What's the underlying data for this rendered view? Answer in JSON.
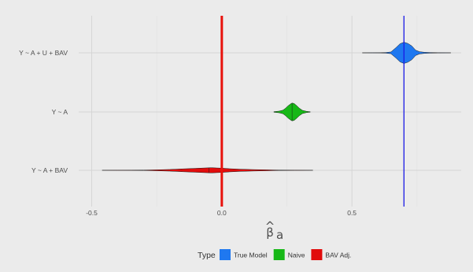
{
  "chart_data": {
    "type": "violin",
    "orientation": "horizontal",
    "xlabel_main": "β",
    "xlabel_hat": "^",
    "xlabel_sub": "a",
    "x_ticks": [
      -0.5,
      0.0,
      0.5
    ],
    "x_tick_labels": [
      "-0.5",
      "0.0",
      "0.5"
    ],
    "xlim": [
      -0.55,
      0.92
    ],
    "categories": [
      "Y ~ A + U + BAV",
      "Y ~ A",
      "Y ~ A + BAV"
    ],
    "grid": true,
    "reference_lines": [
      {
        "x": 0.0,
        "color": "#e8120c"
      },
      {
        "x": 0.7,
        "color": "#1a1ae6"
      }
    ],
    "series": [
      {
        "name": "True Model",
        "category": "Y ~ A + U + BAV",
        "color": "#1f78f0",
        "min": 0.54,
        "max": 0.88,
        "median": 0.7,
        "max_halfwidth_frac": 0.18,
        "profile": [
          [
            0.54,
            0.003
          ],
          [
            0.58,
            0.006
          ],
          [
            0.61,
            0.012
          ],
          [
            0.63,
            0.03
          ],
          [
            0.65,
            0.08
          ],
          [
            0.67,
            0.5
          ],
          [
            0.685,
            0.85
          ],
          [
            0.7,
            1.0
          ],
          [
            0.715,
            0.88
          ],
          [
            0.73,
            0.65
          ],
          [
            0.745,
            0.25
          ],
          [
            0.76,
            0.1
          ],
          [
            0.78,
            0.05
          ],
          [
            0.8,
            0.03
          ],
          [
            0.83,
            0.012
          ],
          [
            0.86,
            0.006
          ],
          [
            0.88,
            0.003
          ]
        ]
      },
      {
        "name": "Naive",
        "category": "Y ~ A",
        "color": "#17b817",
        "min": 0.2,
        "max": 0.34,
        "median": 0.27,
        "max_halfwidth_frac": 0.15,
        "profile": [
          [
            0.2,
            0.03
          ],
          [
            0.22,
            0.09
          ],
          [
            0.235,
            0.2
          ],
          [
            0.245,
            0.42
          ],
          [
            0.255,
            0.7
          ],
          [
            0.265,
            0.92
          ],
          [
            0.27,
            1.0
          ],
          [
            0.278,
            0.95
          ],
          [
            0.288,
            0.7
          ],
          [
            0.298,
            0.42
          ],
          [
            0.31,
            0.18
          ],
          [
            0.325,
            0.07
          ],
          [
            0.34,
            0.02
          ]
        ]
      },
      {
        "name": "BAV Adj.",
        "category": "Y ~ A + BAV",
        "color": "#e10c0c",
        "min": -0.46,
        "max": 0.35,
        "median": -0.05,
        "max_halfwidth_frac": 0.044,
        "profile": [
          [
            -0.46,
            0.01
          ],
          [
            -0.4,
            0.02
          ],
          [
            -0.35,
            0.04
          ],
          [
            -0.3,
            0.08
          ],
          [
            -0.25,
            0.18
          ],
          [
            -0.2,
            0.32
          ],
          [
            -0.15,
            0.55
          ],
          [
            -0.1,
            0.75
          ],
          [
            -0.06,
            0.92
          ],
          [
            -0.04,
            1.0
          ],
          [
            -0.02,
            0.9
          ],
          [
            0.0,
            0.82
          ],
          [
            0.03,
            0.6
          ],
          [
            0.07,
            0.42
          ],
          [
            0.12,
            0.28
          ],
          [
            0.17,
            0.18
          ],
          [
            0.22,
            0.08
          ],
          [
            0.28,
            0.04
          ],
          [
            0.35,
            0.01
          ]
        ]
      }
    ]
  },
  "legend": {
    "title": "Type",
    "items": [
      {
        "label": "True Model",
        "color": "#1f78f0"
      },
      {
        "label": "Naive",
        "color": "#17b817"
      },
      {
        "label": "BAV Adj.",
        "color": "#e10c0c"
      }
    ]
  }
}
